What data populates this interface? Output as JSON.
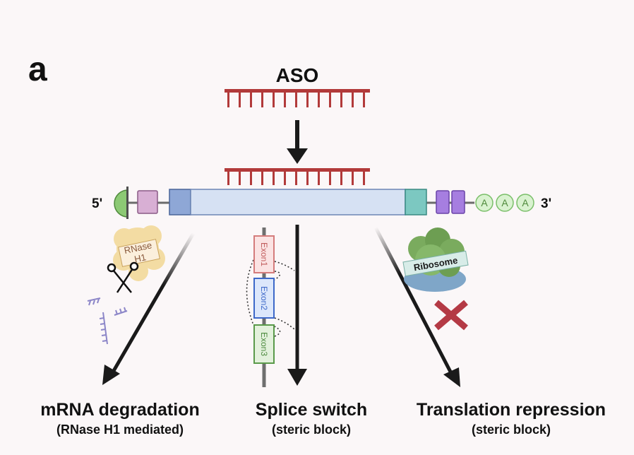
{
  "panel": {
    "letter": "a"
  },
  "aso": {
    "label": "ASO"
  },
  "mrna": {
    "five_prime": "5'",
    "three_prime": "3'",
    "polya": [
      "A",
      "A",
      "A"
    ]
  },
  "rnase": {
    "label_line1": "RNase",
    "label_line2": "H1"
  },
  "splice": {
    "exons": [
      "Exon1",
      "Exon2",
      "Exon3"
    ]
  },
  "ribosome": {
    "label": "Ribosome"
  },
  "outcomes": [
    {
      "title": "mRNA degradation",
      "subtitle": "(RNase H1 mediated)"
    },
    {
      "title": "Splice switch",
      "subtitle": "(steric block)"
    },
    {
      "title": "Translation repression",
      "subtitle": "(steric block)"
    }
  ],
  "colors": {
    "aso": "#b23a3a",
    "body": "#d6e1f3",
    "arrow": "#1a1a1a",
    "cross": "#b43a45"
  }
}
